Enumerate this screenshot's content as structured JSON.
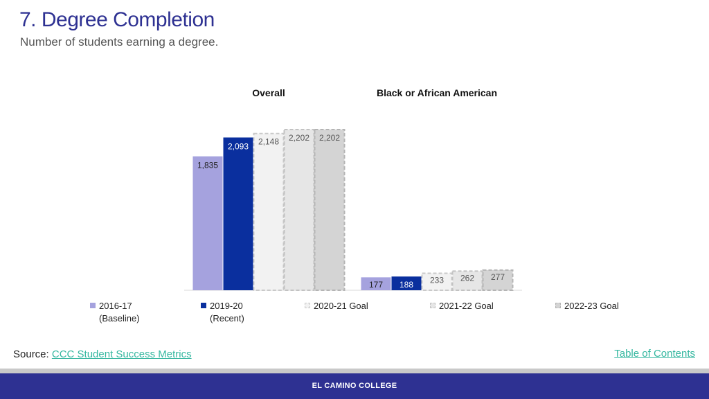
{
  "header": {
    "title": "7. Degree Completion",
    "subtitle": "Number of students earning a degree."
  },
  "chart_data": {
    "type": "bar",
    "groups": [
      "Overall",
      "Black or African American"
    ],
    "series": [
      {
        "name": "2016-17 (Baseline)",
        "legend_lines": [
          "2016-17",
          "(Baseline)"
        ],
        "values": [
          1835,
          177
        ],
        "labels": [
          "1,835",
          "177"
        ],
        "fill": "#a5a2de",
        "border": "#a5a2de",
        "dashed": false
      },
      {
        "name": "2019-20 (Recent)",
        "legend_lines": [
          "2019-20",
          "(Recent)"
        ],
        "values": [
          2093,
          188
        ],
        "labels": [
          "2,093",
          "188"
        ],
        "fill": "#0a2f9e",
        "border": "#0a2f9e",
        "dashed": false
      },
      {
        "name": "2020-21 Goal",
        "legend_lines": [
          "2020-21 Goal",
          ""
        ],
        "values": [
          2148,
          233
        ],
        "labels": [
          "2,148",
          "233"
        ],
        "fill": "#f2f2f2",
        "border": "#c9c9c9",
        "dashed": true
      },
      {
        "name": "2021-22 Goal",
        "legend_lines": [
          "2021-22 Goal",
          ""
        ],
        "values": [
          2202,
          262
        ],
        "labels": [
          "2,202",
          "262"
        ],
        "fill": "#e6e6e6",
        "border": "#c2c2c2",
        "dashed": true
      },
      {
        "name": "2022-23 Goal",
        "legend_lines": [
          "2022-23 Goal",
          ""
        ],
        "values": [
          2202,
          277
        ],
        "labels": [
          "2,202",
          "277"
        ],
        "fill": "#d4d4d4",
        "border": "#b4b4b4",
        "dashed": true
      }
    ],
    "ylim": [
      0,
      2202
    ],
    "grid": false,
    "legend_position": "bottom"
  },
  "source": {
    "prefix": "Source: ",
    "link_text": "CCC Student Success Metrics"
  },
  "nav": {
    "toc_label": "Table of Contents"
  },
  "footer": {
    "text": "EL CAMINO COLLEGE"
  },
  "colors": {
    "brand": "#2e3192",
    "link": "#35b7a0"
  }
}
